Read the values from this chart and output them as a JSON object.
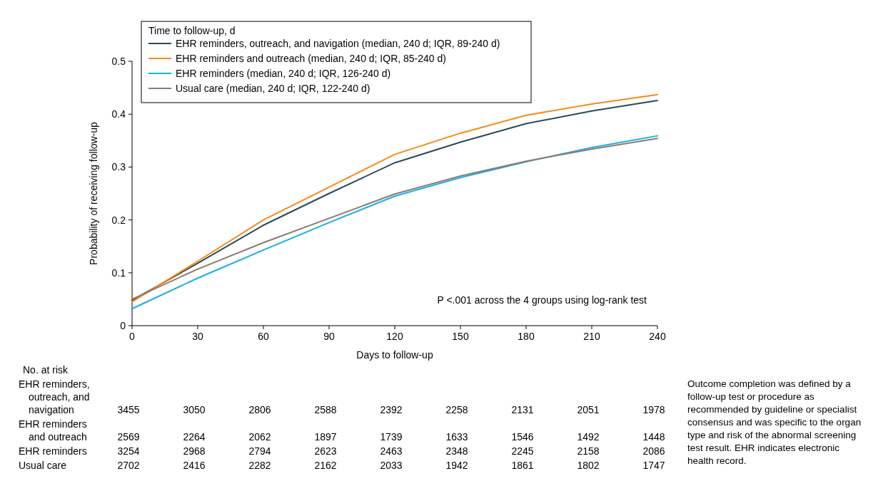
{
  "chart_data": {
    "type": "line",
    "xlabel": "Days to follow-up",
    "ylabel": "Probability of receiving follow-up",
    "legend_title": "Time to follow-up, d",
    "legend": "top left",
    "x": [
      0,
      30,
      60,
      90,
      120,
      150,
      180,
      210,
      240
    ],
    "xlim": [
      0,
      240
    ],
    "xticks": [
      0,
      30,
      60,
      90,
      120,
      150,
      180,
      210,
      240
    ],
    "ylim": [
      0,
      0.5
    ],
    "yticks": [
      0,
      0.1,
      0.2,
      0.3,
      0.4,
      0.5
    ],
    "grid": false,
    "line_style": "solid",
    "series": [
      {
        "name": "EHR reminders, outreach, and navigation (median, 240 d; IQR, 89-240 d)",
        "color": "#2b4a5a",
        "values": [
          0.048,
          0.118,
          0.19,
          0.25,
          0.308,
          0.347,
          0.382,
          0.406,
          0.426
        ]
      },
      {
        "name": "EHR reminders and outreach (median, 240 d; IQR, 85-240 d)",
        "color": "#f28c1a",
        "values": [
          0.045,
          0.122,
          0.2,
          0.262,
          0.324,
          0.364,
          0.398,
          0.419,
          0.437
        ]
      },
      {
        "name": "EHR reminders (median, 240 d; IQR, 126-240 d)",
        "color": "#1aaee5",
        "values": [
          0.032,
          0.09,
          0.143,
          0.195,
          0.245,
          0.28,
          0.31,
          0.337,
          0.359
        ]
      },
      {
        "name": "Usual care (median, 240 d; IQR, 122-240 d)",
        "color": "#8c7b70",
        "values": [
          0.05,
          0.107,
          0.157,
          0.203,
          0.249,
          0.283,
          0.311,
          0.334,
          0.354
        ]
      }
    ],
    "annotations": [
      "P <.001 across the 4 groups using log-rank test",
      "No. at risk",
      "EHR reminders, outreach, and navigation",
      "3455",
      "3050",
      "2806",
      "2588",
      "2392",
      "2258",
      "2131",
      "2051",
      "1978",
      "EHR reminders and outreach",
      "2569",
      "2264",
      "2062",
      "1897",
      "1739",
      "1633",
      "1546",
      "1492",
      "1448",
      "EHR reminders",
      "3254",
      "2968",
      "2794",
      "2623",
      "2463",
      "2348",
      "2245",
      "2158",
      "2086",
      "Usual care",
      "2702",
      "2416",
      "2282",
      "2162",
      "2033",
      "1942",
      "1861",
      "1802",
      "1747",
      "Outcome completion was defined by a follow-up test or procedure as recommended by guideline or specialist consensus and was specific to the organ type and risk of the abnormal screening test result. EHR indicates electronic health record."
    ]
  }
}
